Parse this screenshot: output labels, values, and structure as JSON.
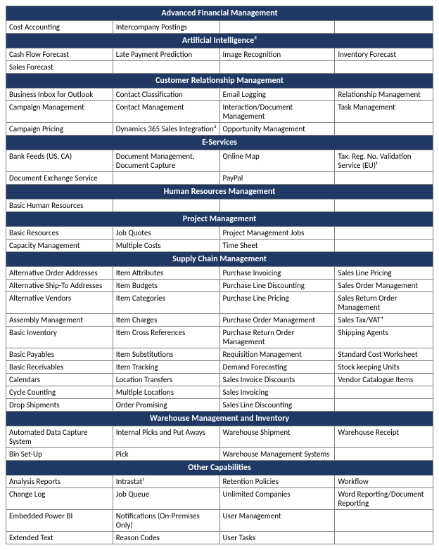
{
  "colors": {
    "header_bg": "#1f3864",
    "header_text": "#ffffff",
    "border": "#7f7f7f",
    "cell_text": "#000000",
    "page_bg": "#ffffff"
  },
  "fonts": {
    "family": "Calibri, Arial, sans-serif",
    "cell_size": 11,
    "header_size": 12
  },
  "sections": [
    {
      "title": "Advanced Financial Management",
      "rows": [
        [
          "Cost Accounting",
          "Intercompany Postings",
          "",
          ""
        ]
      ]
    },
    {
      "title": "Artificial Intelligence²",
      "rows": [
        [
          "Cash Flow Forecast",
          "Late Payment Prediction",
          "Image Recognition",
          "Inventory Forecast"
        ],
        [
          "Sales Forecast",
          "",
          "",
          ""
        ]
      ]
    },
    {
      "title": "Customer Relationship Management",
      "rows": [
        [
          "Business Inbox for Outlook",
          "Contact Classification",
          "Email Logging",
          "Relationship Management"
        ],
        [
          "Campaign Management",
          "Contact Management",
          "Interaction/Document Management",
          "Task Management"
        ],
        [
          "Campaign Pricing",
          "Dynamics 365 Sales Integration³",
          "Opportunity Management",
          ""
        ]
      ]
    },
    {
      "title": "E-Services",
      "rows": [
        [
          "Bank Feeds (US, CA)",
          "Document Management, Document Capture",
          "Online Map",
          "Tax. Reg. No. Validation Service (EU)¹"
        ],
        [
          "Document Exchange Service",
          "",
          "PayPal",
          ""
        ]
      ]
    },
    {
      "title": "Human Resources Management",
      "rows": [
        [
          "Basic Human Resources",
          "",
          "",
          ""
        ]
      ]
    },
    {
      "title": "Project Management",
      "rows": [
        [
          "Basic Resources",
          "Job Quotes",
          "Project Management Jobs",
          ""
        ],
        [
          "Capacity Management",
          "Multiple Costs",
          "Time Sheet",
          ""
        ]
      ]
    },
    {
      "title": "Supply Chain Management",
      "rows": [
        [
          "Alternative Order Addresses",
          "Item Attributes",
          "Purchase Invoicing",
          "Sales Line Pricing"
        ],
        [
          "Alternative Ship-To Addresses",
          "Item Budgets",
          "Purchase Line Discounting",
          "Sales Order Management"
        ],
        [
          "Alternative Vendors",
          "Item Categories",
          "Purchase Line Pricing",
          "Sales Return Order Management"
        ],
        [
          "Assembly Management",
          "Item Charges",
          "Purchase Order Management",
          "Sales Tax/VAT⁴"
        ],
        [
          "Basic Inventory",
          "Item Cross References",
          "Purchase Return Order Management",
          "Shipping Agents"
        ],
        [
          "Basic Payables",
          "Item Substitutions",
          "Requisition Management",
          "Standard Cost Worksheet"
        ],
        [
          "Basic Receivables",
          "Item Tracking",
          "Demand Forecasting",
          "Stock keeping Units"
        ],
        [
          "Calendars",
          "Location Transfers",
          "Sales Invoice Discounts",
          "Vendor Catalogue Items"
        ],
        [
          "Cycle Counting",
          "Multiple Locations",
          "Sales Invoicing",
          ""
        ],
        [
          "Drop Shipments",
          "Order Promising",
          "Sales Line Discounting",
          ""
        ]
      ]
    },
    {
      "title": "Warehouse Management and Inventory",
      "rows": [
        [
          "Automated Data Capture System",
          "Internal Picks and Put Aways",
          "Warehouse Shipment",
          "Warehouse Receipt"
        ],
        [
          "Bin Set-Up",
          "Pick",
          "Warehouse Management Systems",
          ""
        ]
      ]
    },
    {
      "title": "Other Capabilities",
      "rows": [
        [
          "Analysis Reports",
          "Intrastat¹",
          "Retention Policies",
          "Workflow"
        ],
        [
          "Change Log",
          "Job Queue",
          "Unlimited Companies",
          "Word Reporting/Document Reporting"
        ],
        [
          "Embedded Power BI",
          "Notifications (On-Premises Only)",
          "User Management",
          ""
        ],
        [
          "Extended Text",
          "Reason Codes",
          "User Tasks",
          ""
        ]
      ]
    }
  ]
}
